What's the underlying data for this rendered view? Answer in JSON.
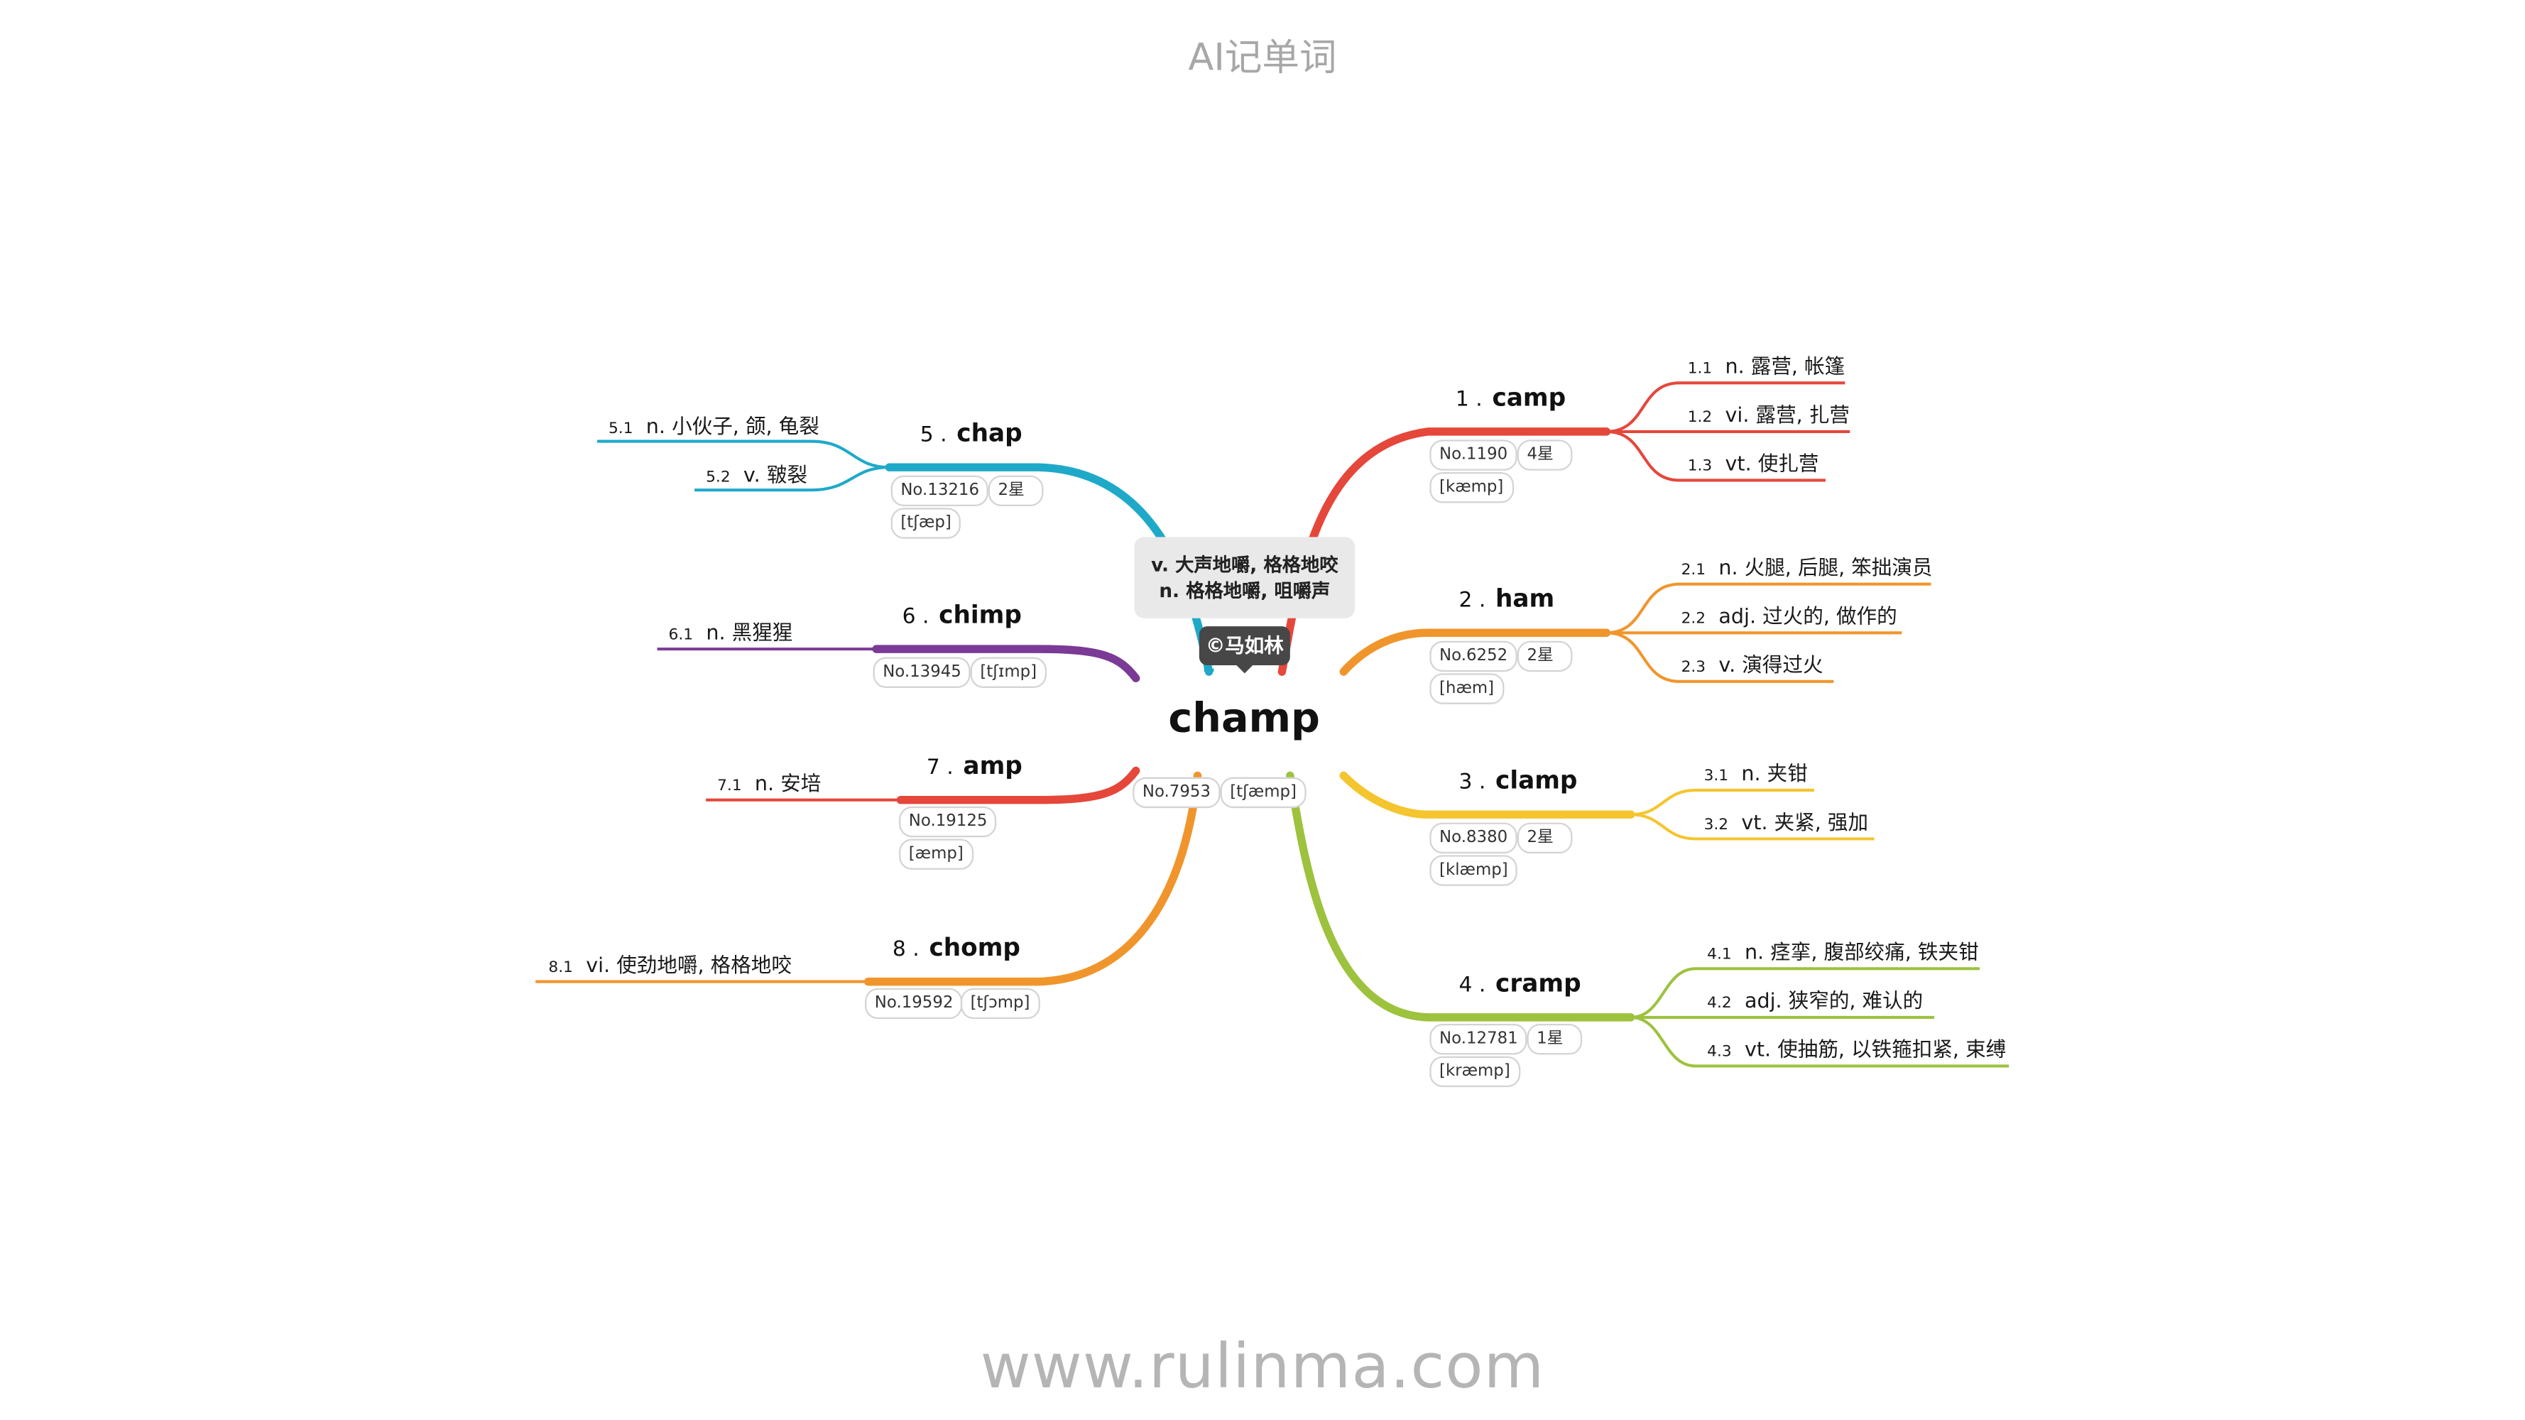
{
  "header": {
    "title": "AI记单词"
  },
  "footer": {
    "url": "www.rulinma.com"
  },
  "root": {
    "word": "champ",
    "definition_line1": "v. 大声地嚼, 格格地咬",
    "definition_line2": "n. 格格地嚼, 咀嚼声",
    "copyright": "©马如林",
    "no": "No.7953",
    "phonetic": "[tʃæmp]"
  },
  "branches": [
    {
      "num": "1 .",
      "word": "camp",
      "no": "No.1190",
      "stars": "4星",
      "phonetic": "[kæmp]",
      "color": "#e5473b",
      "senses": [
        {
          "num": "1.1",
          "text": "n. 露营, 帐篷"
        },
        {
          "num": "1.2",
          "text": "vi. 露营, 扎营"
        },
        {
          "num": "1.3",
          "text": "vt. 使扎营"
        }
      ]
    },
    {
      "num": "2 .",
      "word": "ham",
      "no": "No.6252",
      "stars": "2星",
      "phonetic": "[hæm]",
      "color": "#f0952c",
      "senses": [
        {
          "num": "2.1",
          "text": "n. 火腿, 后腿, 笨拙演员"
        },
        {
          "num": "2.2",
          "text": "adj. 过火的, 做作的"
        },
        {
          "num": "2.3",
          "text": "v. 演得过火"
        }
      ]
    },
    {
      "num": "3 .",
      "word": "clamp",
      "no": "No.8380",
      "stars": "2星",
      "phonetic": "[klæmp]",
      "color": "#f4c52f",
      "senses": [
        {
          "num": "3.1",
          "text": "n. 夹钳"
        },
        {
          "num": "3.2",
          "text": "vt. 夹紧, 强加"
        }
      ]
    },
    {
      "num": "4 .",
      "word": "cramp",
      "no": "No.12781",
      "stars": "1星",
      "phonetic": "[kræmp]",
      "color": "#9dc23e",
      "senses": [
        {
          "num": "4.1",
          "text": "n. 痉挛, 腹部绞痛, 铁夹钳"
        },
        {
          "num": "4.2",
          "text": "adj. 狭窄的, 难认的"
        },
        {
          "num": "4.3",
          "text": "vt. 使抽筋, 以铁箍扣紧, 束缚"
        }
      ]
    },
    {
      "num": "5 .",
      "word": "chap",
      "no": "No.13216",
      "stars": "2星",
      "phonetic": "[tʃæp]",
      "color": "#1fa9c9",
      "senses": [
        {
          "num": "5.1",
          "text": "n. 小伙子, 颌, 龟裂"
        },
        {
          "num": "5.2",
          "text": "v. 皲裂"
        }
      ]
    },
    {
      "num": "6 .",
      "word": "chimp",
      "no": "No.13945",
      "phonetic": "[tʃɪmp]",
      "color": "#7b3a96",
      "senses": [
        {
          "num": "6.1",
          "text": "n. 黑猩猩"
        }
      ]
    },
    {
      "num": "7 .",
      "word": "amp",
      "no": "No.19125",
      "phonetic": "[æmp]",
      "color": "#e5473b",
      "senses": [
        {
          "num": "7.1",
          "text": "n. 安培"
        }
      ]
    },
    {
      "num": "8 .",
      "word": "chomp",
      "no": "No.19592",
      "phonetic": "[tʃɔmp]",
      "color": "#f0952c",
      "senses": [
        {
          "num": "8.1",
          "text": "vi. 使劲地嚼, 格格地咬"
        }
      ]
    }
  ]
}
